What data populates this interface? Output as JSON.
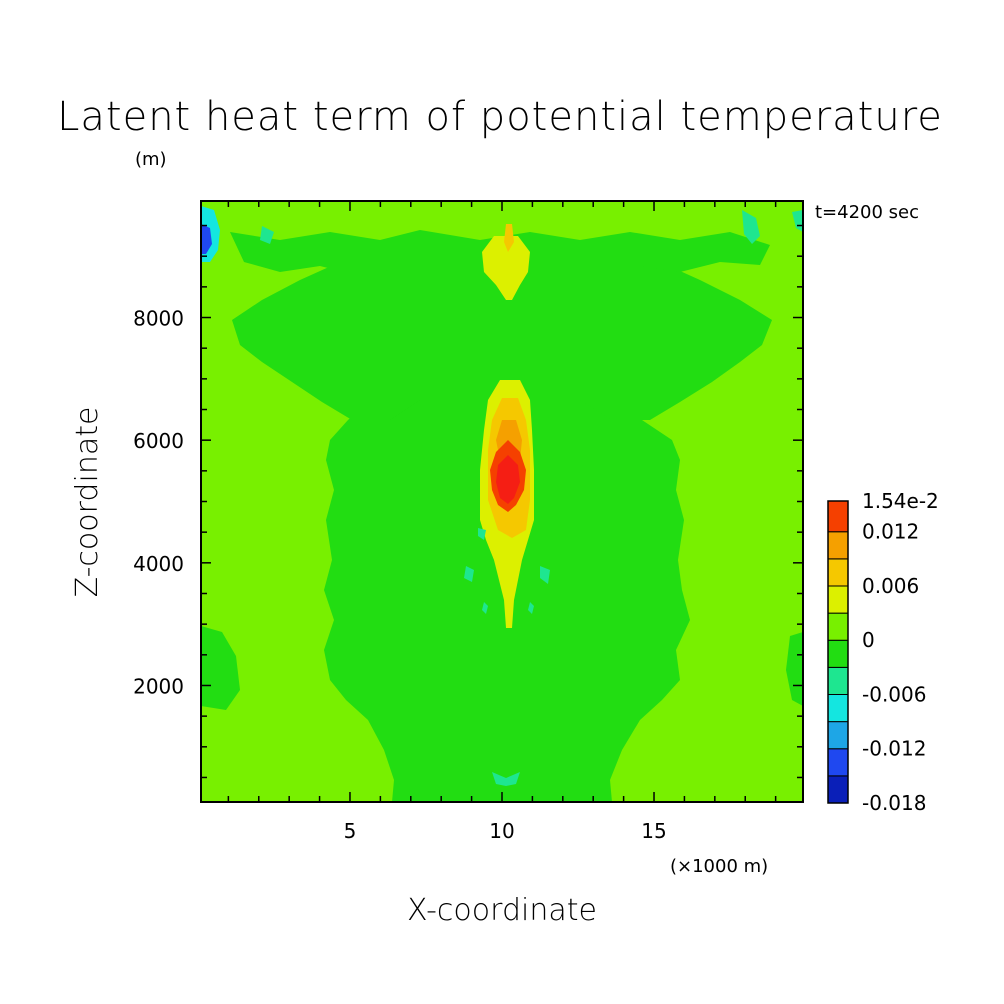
{
  "chart_data": {
    "type": "heatmap",
    "title": "Latent heat term of potential temperature",
    "xlabel": "X-coordinate",
    "ylabel": "Z-coordinate",
    "x_unit": "(×1000 m)",
    "y_unit": "(m)",
    "annotation": "t=4200 sec",
    "xlim": [
      0.1,
      19.9
    ],
    "ylim": [
      100,
      9900
    ],
    "x_ticks": [
      5,
      10,
      15
    ],
    "x_tick_labels": [
      "5",
      "10",
      "15"
    ],
    "y_ticks": [
      2000,
      4000,
      6000,
      8000
    ],
    "y_tick_labels": [
      "2000",
      "4000",
      "6000",
      "8000"
    ],
    "colorbar": {
      "levels": [
        -0.018,
        -0.015,
        -0.012,
        -0.009,
        -0.006,
        -0.003,
        0,
        0.003,
        0.006,
        0.009,
        0.012,
        0.0154
      ],
      "labels": [
        "-0.018",
        "-0.012",
        "-0.006",
        "0",
        "0.006",
        "0.012",
        "1.54e-2"
      ],
      "label_values": [
        -0.018,
        -0.012,
        -0.006,
        0,
        0.006,
        0.012,
        0.0154
      ],
      "colors": [
        "#0a1fb8",
        "#1f48f0",
        "#1ea6e6",
        "#14e6e0",
        "#1ee690",
        "#22dd12",
        "#78f000",
        "#dcf000",
        "#f5c800",
        "#f5a000",
        "#f54000",
        "#f51e14"
      ]
    },
    "features": [
      {
        "kind": "region",
        "x": [
          0.1,
          19.9
        ],
        "z": [
          100,
          9900
        ],
        "value": 0.001
      },
      {
        "kind": "region",
        "x": [
          7,
          13
        ],
        "z": [
          100,
          8000
        ],
        "value": -0.001
      },
      {
        "kind": "region",
        "x": [
          4,
          16
        ],
        "z": [
          1500,
          7500
        ],
        "value": -0.001
      },
      {
        "kind": "region",
        "x": [
          2,
          18
        ],
        "z": [
          8000,
          9400
        ],
        "value": -0.001
      },
      {
        "kind": "maximum",
        "x": 10.1,
        "z": 5400,
        "value": 0.0154
      },
      {
        "kind": "region",
        "x": [
          9.8,
          10.5
        ],
        "z": [
          4800,
          6200
        ],
        "value": 0.012
      },
      {
        "kind": "region",
        "x": [
          9.5,
          10.7
        ],
        "z": [
          4600,
          6600
        ],
        "value": 0.006
      },
      {
        "kind": "region",
        "x": [
          9.8,
          10.5
        ],
        "z": [
          8800,
          9700
        ],
        "value": 0.003
      },
      {
        "kind": "minimum",
        "x": 0.3,
        "z": 9400,
        "value": -0.012
      }
    ]
  }
}
